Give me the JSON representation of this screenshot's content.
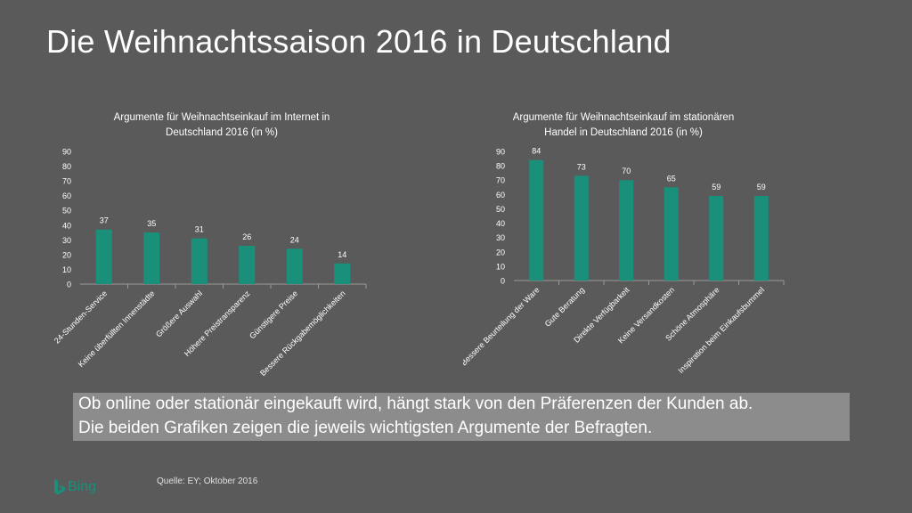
{
  "slide": {
    "title": "Die Weihnachtssaison 2016 in Deutschland",
    "summary_line1": "Ob online oder stationär eingekauft wird, hängt stark von den Präferenzen der Kunden ab.",
    "summary_line2": "Die beiden Grafiken zeigen die jeweils wichtigsten Argumente der Befragten.",
    "source": "Quelle: EY; Oktober 2016",
    "logo_text": "Bing",
    "logo_icon": "bing-b-icon",
    "bar_color": "#1a8f7a",
    "axis_color": "#9a9a9a"
  },
  "chart_data": [
    {
      "type": "bar",
      "title_lines": [
        "Argumente für Weihnachtseinkauf im Internet in",
        "Deutschland 2016 (in %)"
      ],
      "categories": [
        "24-Stunden-Service",
        "Keine überfüllten Innenstädte",
        "Größere Auswahl",
        "Höhere Preistransparenz",
        "Günstigere Preise",
        "Bessere Rückgabemöglichkeiten"
      ],
      "values": [
        37,
        35,
        31,
        26,
        24,
        14
      ],
      "yticks": [
        0,
        10,
        20,
        30,
        40,
        50,
        60,
        70,
        80,
        90
      ],
      "ylim": [
        0,
        90
      ],
      "grid": false,
      "data_labels": true
    },
    {
      "type": "bar",
      "title_lines": [
        "Argumente für Weihnachtseinkauf im stationären",
        "Handel in Deutschland 2016 (in %)"
      ],
      "categories": [
        "Bessere Beurteilung der Ware",
        "Gute Beratung",
        "Direkte Verfügbarkeit",
        "Keine Versandkosten",
        "Schöne Atmosphäre",
        "Inspiration beim Einkaufsbummel"
      ],
      "values": [
        84,
        73,
        70,
        65,
        59,
        59
      ],
      "yticks": [
        0,
        10,
        20,
        30,
        40,
        50,
        60,
        70,
        80,
        90
      ],
      "ylim": [
        0,
        90
      ],
      "grid": false,
      "data_labels": true
    }
  ]
}
